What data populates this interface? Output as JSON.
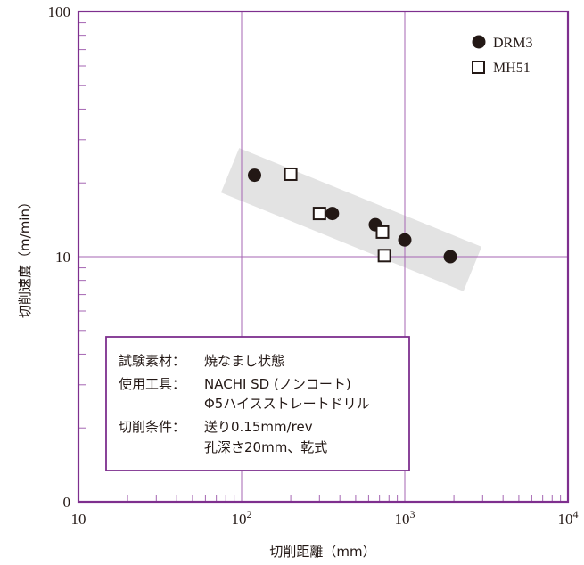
{
  "chart_data": {
    "type": "scatter",
    "xlabel": "切削距離（mm）",
    "ylabel": "切削速度（m/min）",
    "x_scale": "log",
    "y_scale": "log",
    "xlim": [
      10,
      10000
    ],
    "ylim_labels": [
      "0",
      "10",
      "100"
    ],
    "x_tick_labels": [
      {
        "value": 10,
        "base": "10",
        "exp": ""
      },
      {
        "value": 100,
        "base": "10",
        "exp": "2"
      },
      {
        "value": 1000,
        "base": "10",
        "exp": "3"
      },
      {
        "value": 10000,
        "base": "10",
        "exp": "4"
      }
    ],
    "y_tick_labels": [
      {
        "value": 1,
        "label": "0"
      },
      {
        "value": 10,
        "label": "10"
      },
      {
        "value": 100,
        "label": "100"
      }
    ],
    "grid": true,
    "legend_position": "top-right",
    "series": [
      {
        "name": "DRM3",
        "marker": "filled-circle",
        "color": "#231815",
        "points": [
          {
            "x": 120,
            "y": 21.5
          },
          {
            "x": 360,
            "y": 15.0
          },
          {
            "x": 660,
            "y": 13.5
          },
          {
            "x": 1000,
            "y": 11.7
          },
          {
            "x": 1900,
            "y": 10.0
          }
        ]
      },
      {
        "name": "MH51",
        "marker": "open-square",
        "color": "#231815",
        "points": [
          {
            "x": 200,
            "y": 21.7
          },
          {
            "x": 300,
            "y": 15.0
          },
          {
            "x": 730,
            "y": 12.6
          },
          {
            "x": 750,
            "y": 10.1
          }
        ]
      }
    ],
    "trend_band": {
      "color": "#e3e3e3",
      "x_from": 85,
      "x_to": 2600,
      "y_center_from": 22.5,
      "y_center_to": 8.9
    },
    "conditions": [
      {
        "label": "試験素材：",
        "lines": [
          "焼なまし状態"
        ]
      },
      {
        "label": "使用工具：",
        "lines": [
          "NACHI SD (ノンコート)",
          "Φ5ハイスストレートドリル"
        ]
      },
      {
        "label": "切削条件：",
        "lines": [
          "送り0.15mm/rev",
          "孔深さ20mm、乾式"
        ]
      }
    ],
    "colors": {
      "frame": "#7e2f8e",
      "grid": "#a566b3",
      "text": "#231815",
      "band": "#e3e3e3"
    }
  }
}
